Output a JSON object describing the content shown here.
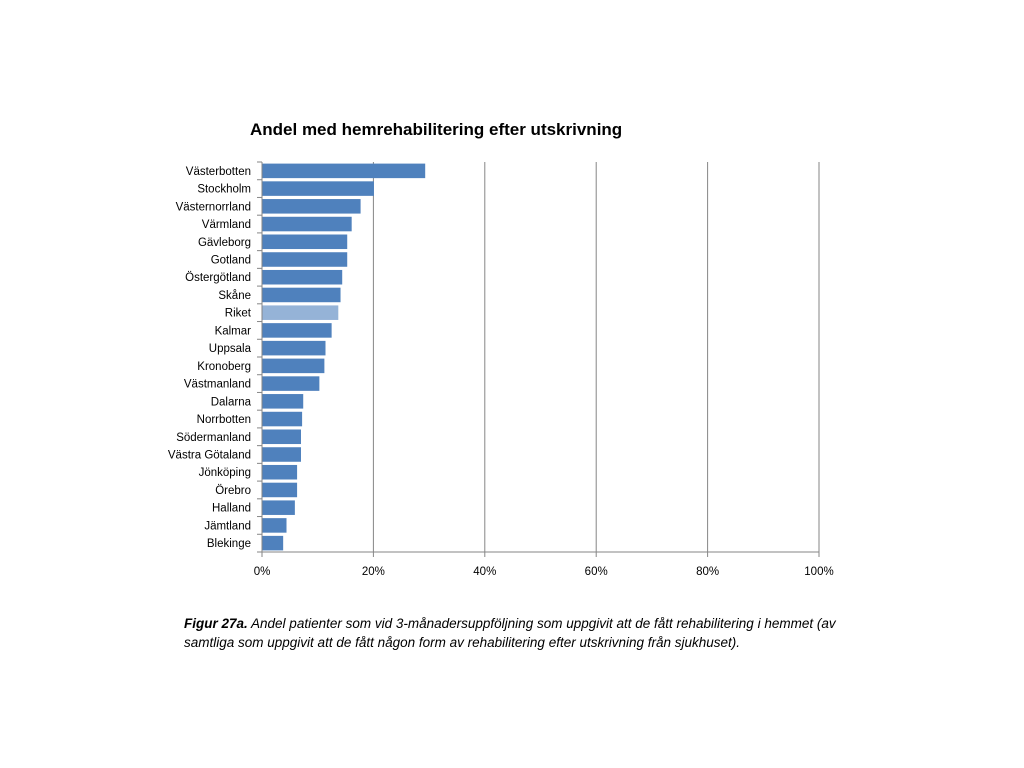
{
  "chart_data": {
    "type": "bar",
    "orientation": "horizontal",
    "title": "Andel med hemrehabilitering efter utskrivning",
    "categories": [
      "Västerbotten",
      "Stockholm",
      "Västernorrland",
      "Värmland",
      "Gävleborg",
      "Gotland",
      "Östergötland",
      "Skåne",
      "Riket",
      "Kalmar",
      "Uppsala",
      "Kronoberg",
      "Västmanland",
      "Dalarna",
      "Norrbotten",
      "Södermanland",
      "Västra Götaland",
      "Jönköping",
      "Örebro",
      "Halland",
      "Jämtland",
      "Blekinge"
    ],
    "values": [
      29.3,
      20.1,
      17.7,
      16.1,
      15.3,
      15.3,
      14.4,
      14.1,
      13.7,
      12.5,
      11.4,
      11.2,
      10.3,
      7.4,
      7.2,
      7.0,
      7.0,
      6.3,
      6.3,
      5.9,
      4.4,
      3.8
    ],
    "xlabel": "",
    "ylabel": "",
    "xlim": [
      0,
      100
    ],
    "xticks": [
      "0%",
      "20%",
      "40%",
      "60%",
      "80%",
      "100%"
    ],
    "grid": true,
    "highlight_category": "Riket",
    "colors": {
      "bar": "#4f81bd",
      "highlight": "#95b3d7",
      "grid": "#868686",
      "axis": "#868686"
    }
  },
  "caption": {
    "label": "Figur 27a.",
    "text": " Andel patienter som vid 3-månadersuppföljning som uppgivit att de fått rehabilitering i hemmet (av samtliga som uppgivit att de fått någon form av rehabilitering efter utskrivning från sjukhuset)."
  }
}
